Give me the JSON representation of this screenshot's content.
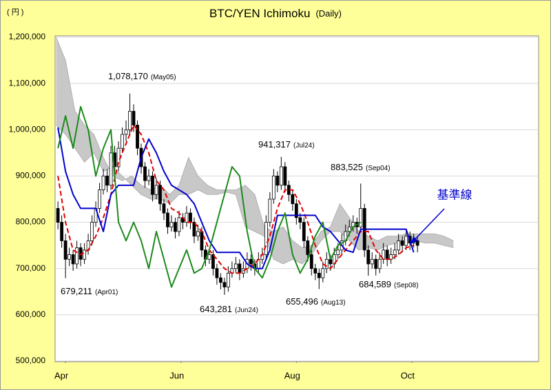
{
  "chart_data": {
    "type": "candlestick",
    "title": "BTC/YEN  Ichimoku",
    "subtitle": "(Daily)",
    "y_unit": "( 円 )",
    "ylim": [
      500000,
      1200000
    ],
    "yticks": [
      {
        "value": 500000,
        "label": "500,000"
      },
      {
        "value": 600000,
        "label": "600,000"
      },
      {
        "value": 700000,
        "label": "700,000"
      },
      {
        "value": 800000,
        "label": "800,000"
      },
      {
        "value": 900000,
        "label": "900,000"
      },
      {
        "value": 1000000,
        "label": "1,000,000"
      },
      {
        "value": 1100000,
        "label": "1,100,000"
      },
      {
        "value": 1200000,
        "label": "1,200,000"
      }
    ],
    "xlim": [
      -5.5,
      250
    ],
    "xticks": [
      {
        "value": 0,
        "label": "Apr"
      },
      {
        "value": 61,
        "label": "Jun"
      },
      {
        "value": 122,
        "label": "Aug"
      },
      {
        "value": 183,
        "label": "Oct"
      }
    ],
    "grid": true,
    "candles": {
      "up_color": "#ffffff",
      "down_color": "#000000",
      "x": [
        -4,
        -2,
        0,
        2,
        4,
        6,
        8,
        10,
        12,
        14,
        16,
        18,
        20,
        22,
        24,
        26,
        28,
        30,
        32,
        34,
        36,
        38,
        40,
        42,
        44,
        46,
        48,
        50,
        52,
        54,
        56,
        58,
        60,
        62,
        64,
        66,
        68,
        70,
        72,
        74,
        76,
        78,
        80,
        82,
        84,
        86,
        88,
        90,
        92,
        94,
        96,
        98,
        100,
        102,
        104,
        106,
        108,
        110,
        112,
        114,
        116,
        118,
        120,
        122,
        124,
        126,
        128,
        130,
        132,
        134,
        136,
        138,
        140,
        142,
        144,
        146,
        148,
        150,
        152,
        154,
        156,
        158,
        160,
        162,
        164,
        166,
        168,
        170,
        172,
        174,
        176,
        178,
        180,
        182,
        184,
        186
      ],
      "open": [
        830000,
        800000,
        760000,
        720000,
        730000,
        710000,
        745000,
        720000,
        740000,
        760000,
        800000,
        830000,
        870000,
        900000,
        880000,
        950000,
        920000,
        960000,
        990000,
        1000000,
        1040000,
        1010000,
        960000,
        920000,
        890000,
        900000,
        860000,
        880000,
        840000,
        820000,
        790000,
        800000,
        780000,
        810000,
        800000,
        820000,
        800000,
        770000,
        780000,
        740000,
        720000,
        730000,
        700000,
        680000,
        670000,
        660000,
        690000,
        700000,
        710000,
        690000,
        700000,
        720000,
        710000,
        700000,
        720000,
        730000,
        800000,
        850000,
        900000,
        880000,
        920000,
        880000,
        860000,
        840000,
        810000,
        800000,
        760000,
        730000,
        700000,
        690000,
        680000,
        700000,
        720000,
        710000,
        730000,
        740000,
        760000,
        780000,
        790000,
        800000,
        790000,
        830000,
        740000,
        710000,
        720000,
        700000,
        720000,
        740000,
        720000,
        730000,
        740000,
        760000,
        750000,
        770000,
        755000,
        760000
      ],
      "high": [
        845000,
        815000,
        775000,
        745000,
        740000,
        760000,
        755000,
        755000,
        775000,
        815000,
        845000,
        885000,
        915000,
        915000,
        965000,
        965000,
        975000,
        1005000,
        1020000,
        1078170,
        1055000,
        1020000,
        970000,
        930000,
        915000,
        910000,
        895000,
        890000,
        850000,
        830000,
        815000,
        810000,
        825000,
        820000,
        835000,
        830000,
        810000,
        795000,
        790000,
        750000,
        745000,
        740000,
        710000,
        690000,
        680000,
        705000,
        715000,
        725000,
        720000,
        715000,
        735000,
        730000,
        720000,
        735000,
        745000,
        815000,
        865000,
        915000,
        910000,
        941317,
        930000,
        890000,
        870000,
        850000,
        820000,
        810000,
        770000,
        740000,
        710000,
        700000,
        715000,
        735000,
        730000,
        745000,
        755000,
        775000,
        795000,
        805000,
        815000,
        810000,
        883525,
        840000,
        750000,
        735000,
        730000,
        735000,
        755000,
        750000,
        745000,
        755000,
        775000,
        770000,
        785000,
        780000,
        775000,
        770000
      ],
      "low": [
        785000,
        745000,
        679211,
        705000,
        695000,
        700000,
        705000,
        710000,
        730000,
        750000,
        790000,
        820000,
        860000,
        865000,
        870000,
        905000,
        910000,
        950000,
        975000,
        990000,
        995000,
        945000,
        905000,
        875000,
        880000,
        845000,
        850000,
        825000,
        805000,
        775000,
        780000,
        765000,
        770000,
        785000,
        790000,
        785000,
        755000,
        760000,
        725000,
        705000,
        710000,
        685000,
        665000,
        655000,
        643281,
        650000,
        680000,
        690000,
        675000,
        680000,
        690000,
        695000,
        685000,
        690000,
        710000,
        720000,
        790000,
        840000,
        865000,
        870000,
        865000,
        845000,
        825000,
        795000,
        785000,
        745000,
        715000,
        685000,
        675000,
        655496,
        670000,
        690000,
        695000,
        700000,
        720000,
        730000,
        750000,
        770000,
        780000,
        775000,
        780000,
        725000,
        684589,
        700000,
        685000,
        690000,
        710000,
        705000,
        710000,
        720000,
        730000,
        735000,
        740000,
        740000,
        745000,
        735000
      ],
      "close": [
        800000,
        760000,
        720000,
        730000,
        710000,
        745000,
        720000,
        740000,
        760000,
        800000,
        830000,
        870000,
        900000,
        880000,
        950000,
        920000,
        960000,
        990000,
        1000000,
        1040000,
        1010000,
        960000,
        920000,
        890000,
        900000,
        860000,
        880000,
        840000,
        820000,
        790000,
        800000,
        780000,
        810000,
        800000,
        820000,
        800000,
        770000,
        780000,
        740000,
        720000,
        730000,
        700000,
        680000,
        670000,
        660000,
        690000,
        700000,
        710000,
        690000,
        700000,
        720000,
        710000,
        700000,
        720000,
        730000,
        800000,
        850000,
        900000,
        880000,
        920000,
        880000,
        860000,
        840000,
        810000,
        800000,
        760000,
        730000,
        700000,
        690000,
        680000,
        700000,
        720000,
        710000,
        730000,
        740000,
        760000,
        780000,
        790000,
        800000,
        790000,
        830000,
        740000,
        710000,
        720000,
        700000,
        720000,
        740000,
        720000,
        730000,
        740000,
        760000,
        750000,
        770000,
        755000,
        760000,
        750000
      ]
    },
    "cloud": {
      "color": "#c8c8c8",
      "x": [
        -5,
        0,
        5,
        10,
        15,
        20,
        25,
        30,
        35,
        40,
        45,
        50,
        55,
        60,
        65,
        70,
        75,
        80,
        85,
        90,
        95,
        100,
        105,
        110,
        115,
        120,
        125,
        130,
        135,
        140,
        145,
        150,
        155,
        160,
        165,
        170,
        175,
        180,
        185,
        190,
        195,
        200,
        205
      ],
      "span_a": [
        1200000,
        1150000,
        1040000,
        1010000,
        990000,
        940000,
        900000,
        890000,
        900000,
        880000,
        870000,
        880000,
        860000,
        880000,
        940000,
        900000,
        880000,
        870000,
        870000,
        870000,
        880000,
        860000,
        790000,
        780000,
        790000,
        760000,
        745000,
        750000,
        780000,
        790000,
        840000,
        810000,
        780000,
        770000,
        760000,
        770000,
        770000,
        775000,
        775000,
        775000,
        775000,
        770000,
        760000
      ],
      "span_b": [
        1010000,
        990000,
        960000,
        930000,
        950000,
        910000,
        920000,
        900000,
        880000,
        860000,
        850000,
        850000,
        840000,
        860000,
        860000,
        870000,
        860000,
        860000,
        865000,
        860000,
        790000,
        780000,
        770000,
        720000,
        710000,
        720000,
        710000,
        730000,
        760000,
        780000,
        780000,
        760000,
        740000,
        745000,
        740000,
        750000,
        755000,
        755000,
        760000,
        755000,
        755000,
        750000,
        745000
      ]
    },
    "series": [
      {
        "color": "#e00000",
        "dash": true,
        "x": [
          -4,
          0,
          4,
          8,
          12,
          16,
          20,
          24,
          28,
          32,
          36,
          40,
          44,
          48,
          52,
          56,
          60,
          64,
          68,
          72,
          76,
          80,
          84,
          88,
          92,
          96,
          100,
          104,
          108,
          112,
          116,
          120,
          124,
          128,
          132,
          136,
          140,
          144,
          148,
          152,
          156,
          160,
          164,
          168,
          172,
          176,
          180,
          184
        ],
        "values": [
          900000,
          800000,
          740000,
          730000,
          740000,
          770000,
          810000,
          860000,
          930000,
          970000,
          1010000,
          990000,
          950000,
          890000,
          870000,
          830000,
          820000,
          800000,
          800000,
          780000,
          740000,
          720000,
          700000,
          690000,
          690000,
          700000,
          710000,
          730000,
          770000,
          830000,
          870000,
          870000,
          840000,
          800000,
          750000,
          710000,
          700000,
          720000,
          740000,
          760000,
          780000,
          780000,
          740000,
          720000,
          720000,
          730000,
          745000,
          750000
        ]
      },
      {
        "name": "基準線",
        "color": "#0000cc",
        "dash": false,
        "x": [
          -4,
          0,
          4,
          8,
          12,
          16,
          20,
          24,
          28,
          32,
          36,
          40,
          44,
          48,
          52,
          56,
          60,
          64,
          68,
          72,
          76,
          80,
          84,
          88,
          92,
          96,
          100,
          104,
          108,
          112,
          116,
          120,
          124,
          128,
          132,
          136,
          140,
          144,
          148,
          152,
          156,
          160,
          164,
          168,
          172,
          176,
          180,
          184
        ],
        "values": [
          1005000,
          910000,
          860000,
          830000,
          830000,
          830000,
          780000,
          860000,
          880000,
          880000,
          880000,
          940000,
          980000,
          950000,
          910000,
          880000,
          870000,
          860000,
          840000,
          800000,
          760000,
          735000,
          735000,
          735000,
          735000,
          710000,
          700000,
          700000,
          740000,
          815000,
          815000,
          815000,
          815000,
          815000,
          815000,
          790000,
          780000,
          760000,
          740000,
          735000,
          785000,
          785000,
          785000,
          785000,
          785000,
          785000,
          785000,
          735000
        ]
      },
      {
        "color": "#1a8a1a",
        "dash": false,
        "x": [
          -4,
          0,
          4,
          8,
          12,
          16,
          20,
          24,
          28,
          32,
          36,
          40,
          44,
          48,
          52,
          56,
          60,
          64,
          68,
          72,
          76,
          80,
          84,
          88,
          92,
          96,
          100,
          104,
          108,
          112,
          116,
          120,
          124,
          128,
          132,
          136,
          140,
          144,
          148,
          152,
          156
        ],
        "values": [
          960000,
          1030000,
          960000,
          1050000,
          1000000,
          900000,
          960000,
          1000000,
          800000,
          760000,
          800000,
          760000,
          700000,
          780000,
          720000,
          660000,
          700000,
          740000,
          690000,
          700000,
          740000,
          800000,
          860000,
          920000,
          900000,
          780000,
          700000,
          680000,
          720000,
          780000,
          820000,
          730000,
          690000,
          720000,
          770000,
          800000,
          720000,
          750000,
          760000,
          790000,
          800000
        ]
      }
    ],
    "annotations": [
      {
        "value": "1,078,170",
        "date": "(May05)"
      },
      {
        "value": "941,317",
        "date": "(Jul24)"
      },
      {
        "value": "883,525",
        "date": "(Sep04)"
      },
      {
        "value": "679,211",
        "date": "(Apr01)"
      },
      {
        "value": "643,281",
        "date": "(Jun24)"
      },
      {
        "value": "655,496",
        "date": "(Aug13)"
      },
      {
        "value": "684,589",
        "date": "(Sep08)"
      }
    ]
  }
}
